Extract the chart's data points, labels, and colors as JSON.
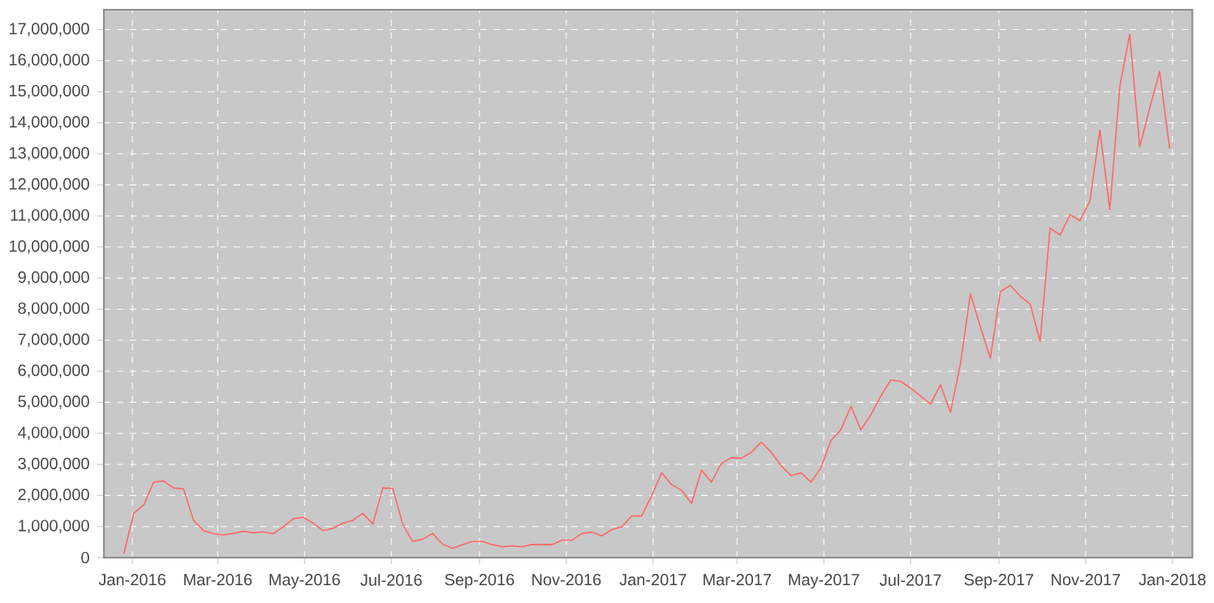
{
  "chart_data": {
    "type": "line",
    "x": [
      "2015-12-26",
      "2016-01-02",
      "2016-01-09",
      "2016-01-16",
      "2016-01-23",
      "2016-01-30",
      "2016-02-06",
      "2016-02-13",
      "2016-02-20",
      "2016-02-27",
      "2016-03-05",
      "2016-03-12",
      "2016-03-19",
      "2016-03-26",
      "2016-04-02",
      "2016-04-09",
      "2016-04-16",
      "2016-04-23",
      "2016-04-30",
      "2016-05-07",
      "2016-05-14",
      "2016-05-21",
      "2016-05-28",
      "2016-06-04",
      "2016-06-11",
      "2016-06-18",
      "2016-06-25",
      "2016-07-02",
      "2016-07-09",
      "2016-07-16",
      "2016-07-23",
      "2016-07-30",
      "2016-08-06",
      "2016-08-13",
      "2016-08-20",
      "2016-08-27",
      "2016-09-03",
      "2016-09-10",
      "2016-09-17",
      "2016-09-24",
      "2016-10-01",
      "2016-10-08",
      "2016-10-15",
      "2016-10-22",
      "2016-10-29",
      "2016-11-05",
      "2016-11-12",
      "2016-11-19",
      "2016-11-26",
      "2016-12-03",
      "2016-12-10",
      "2016-12-17",
      "2016-12-24",
      "2016-12-31",
      "2017-01-07",
      "2017-01-14",
      "2017-01-21",
      "2017-01-28",
      "2017-02-04",
      "2017-02-11",
      "2017-02-18",
      "2017-02-25",
      "2017-03-04",
      "2017-03-11",
      "2017-03-18",
      "2017-03-25",
      "2017-04-01",
      "2017-04-08",
      "2017-04-15",
      "2017-04-22",
      "2017-04-29",
      "2017-05-06",
      "2017-05-13",
      "2017-05-20",
      "2017-05-27",
      "2017-06-03",
      "2017-06-10",
      "2017-06-17",
      "2017-06-24",
      "2017-07-01",
      "2017-07-08",
      "2017-07-15",
      "2017-07-22",
      "2017-07-29",
      "2017-08-05",
      "2017-08-12",
      "2017-08-19",
      "2017-08-26",
      "2017-09-02",
      "2017-09-09",
      "2017-09-16",
      "2017-09-23",
      "2017-09-30",
      "2017-10-07",
      "2017-10-14",
      "2017-10-21",
      "2017-10-28",
      "2017-11-04",
      "2017-11-11",
      "2017-11-18",
      "2017-11-25",
      "2017-12-02",
      "2017-12-09",
      "2017-12-16",
      "2017-12-23",
      "2017-12-30"
    ],
    "series": [
      {
        "color": "#ff6666",
        "values": [
          120000,
          1430000,
          1690000,
          2430000,
          2470000,
          2240000,
          2210000,
          1200000,
          870000,
          770000,
          730000,
          780000,
          850000,
          800000,
          830000,
          770000,
          990000,
          1250000,
          1300000,
          1110000,
          870000,
          940000,
          1110000,
          1200000,
          1430000,
          1080000,
          2240000,
          2230000,
          1080000,
          520000,
          590000,
          780000,
          430000,
          300000,
          420000,
          520000,
          520000,
          420000,
          350000,
          380000,
          350000,
          420000,
          420000,
          420000,
          560000,
          560000,
          780000,
          820000,
          700000,
          900000,
          990000,
          1340000,
          1340000,
          2000000,
          2730000,
          2350000,
          2170000,
          1740000,
          2820000,
          2430000,
          3030000,
          3220000,
          3200000,
          3390000,
          3720000,
          3390000,
          2960000,
          2640000,
          2730000,
          2430000,
          2900000,
          3770000,
          4120000,
          4870000,
          4120000,
          4590000,
          5200000,
          5720000,
          5670000,
          5460000,
          5200000,
          4940000,
          5570000,
          4680000,
          6240000,
          8500000,
          7430000,
          6420000,
          8560000,
          8770000,
          8420000,
          8160000,
          6960000,
          10610000,
          10380000,
          11040000,
          10850000,
          11480000,
          13770000,
          11200000,
          15170000,
          16850000,
          13220000,
          14470000,
          15650000,
          13170000
        ]
      }
    ],
    "xlim": [
      "2015-12-12",
      "2018-01-15"
    ],
    "ylim": [
      0,
      17640000
    ],
    "xticks": [
      {
        "value": "2016-01-01",
        "label": "Jan-2016"
      },
      {
        "value": "2016-03-01",
        "label": "Mar-2016"
      },
      {
        "value": "2016-05-01",
        "label": "May-2016"
      },
      {
        "value": "2016-07-01",
        "label": "Jul-2016"
      },
      {
        "value": "2016-09-01",
        "label": "Sep-2016"
      },
      {
        "value": "2016-11-01",
        "label": "Nov-2016"
      },
      {
        "value": "2017-01-01",
        "label": "Jan-2017"
      },
      {
        "value": "2017-03-01",
        "label": "Mar-2017"
      },
      {
        "value": "2017-05-01",
        "label": "May-2017"
      },
      {
        "value": "2017-07-01",
        "label": "Jul-2017"
      },
      {
        "value": "2017-09-01",
        "label": "Sep-2017"
      },
      {
        "value": "2017-11-01",
        "label": "Nov-2017"
      },
      {
        "value": "2018-01-01",
        "label": "Jan-2018"
      }
    ],
    "yticks": [
      {
        "value": 0,
        "label": "0"
      },
      {
        "value": 1000000,
        "label": "1,000,000"
      },
      {
        "value": 2000000,
        "label": "2,000,000"
      },
      {
        "value": 3000000,
        "label": "3,000,000"
      },
      {
        "value": 4000000,
        "label": "4,000,000"
      },
      {
        "value": 5000000,
        "label": "5,000,000"
      },
      {
        "value": 6000000,
        "label": "6,000,000"
      },
      {
        "value": 7000000,
        "label": "7,000,000"
      },
      {
        "value": 8000000,
        "label": "8,000,000"
      },
      {
        "value": 9000000,
        "label": "9,000,000"
      },
      {
        "value": 10000000,
        "label": "10,000,000"
      },
      {
        "value": 11000000,
        "label": "11,000,000"
      },
      {
        "value": 12000000,
        "label": "12,000,000"
      },
      {
        "value": 13000000,
        "label": "13,000,000"
      },
      {
        "value": 14000000,
        "label": "14,000,000"
      },
      {
        "value": 15000000,
        "label": "15,000,000"
      },
      {
        "value": 16000000,
        "label": "16,000,000"
      },
      {
        "value": 17000000,
        "label": "17,000,000"
      }
    ],
    "grid": true,
    "legend": false,
    "marker": "none",
    "line_style": "solid"
  }
}
